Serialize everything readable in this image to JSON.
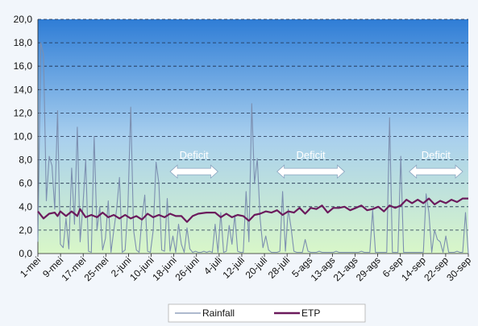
{
  "chart_data": {
    "type": "line",
    "ylim": [
      0,
      20
    ],
    "yticks": [
      "0,0",
      "2,0",
      "4,0",
      "6,0",
      "8,0",
      "10,0",
      "12,0",
      "14,0",
      "16,0",
      "18,0",
      "20,0"
    ],
    "xticks": [
      "1-mei",
      "9-mei",
      "17-mei",
      "25-mei",
      "2-juni",
      "10-juni",
      "18-juni",
      "26-juni",
      "4-juli",
      "12-juli",
      "20-juli",
      "28-juli",
      "5-ags",
      "13-ags",
      "21-ags",
      "29-ags",
      "6-sep",
      "14-sep",
      "22-sep",
      "30-sep"
    ],
    "grid": true,
    "legend_position": "bottom",
    "series": [
      {
        "name": "Rainfall",
        "color": "#7c8fb0",
        "points": [
          [
            0,
            1
          ],
          [
            1,
            18
          ],
          [
            2,
            17
          ],
          [
            3,
            4.5
          ],
          [
            4,
            8.3
          ],
          [
            5,
            7.5
          ],
          [
            6,
            3.8
          ],
          [
            7,
            12.2
          ],
          [
            8,
            0.8
          ],
          [
            9,
            0.5
          ],
          [
            10,
            3
          ],
          [
            11,
            0.4
          ],
          [
            12,
            7.3
          ],
          [
            13,
            2.5
          ],
          [
            14,
            10.8
          ],
          [
            15,
            1
          ],
          [
            16,
            4
          ],
          [
            17,
            8
          ],
          [
            18,
            0.2
          ],
          [
            19,
            0.1
          ],
          [
            20,
            10
          ],
          [
            21,
            2
          ],
          [
            22,
            4
          ],
          [
            23,
            0.3
          ],
          [
            24,
            1.3
          ],
          [
            25,
            4.5
          ],
          [
            26,
            0.1
          ],
          [
            27,
            2
          ],
          [
            28,
            3.8
          ],
          [
            29,
            6.5
          ],
          [
            30,
            0.1
          ],
          [
            31,
            0.3
          ],
          [
            32,
            4
          ],
          [
            33,
            12.5
          ],
          [
            34,
            2
          ],
          [
            35,
            0.3
          ],
          [
            36,
            0.1
          ],
          [
            37,
            3
          ],
          [
            38,
            5
          ],
          [
            39,
            0.2
          ],
          [
            40,
            0.1
          ],
          [
            41,
            2
          ],
          [
            42,
            7.8
          ],
          [
            43,
            6
          ],
          [
            44,
            0.3
          ],
          [
            45,
            0.2
          ],
          [
            46,
            4.7
          ],
          [
            47,
            0.2
          ],
          [
            48,
            1.5
          ],
          [
            49,
            0.1
          ],
          [
            50,
            2.5
          ],
          [
            51,
            0.8
          ],
          [
            52,
            0.1
          ],
          [
            53,
            2.2
          ],
          [
            54,
            0.4
          ],
          [
            55,
            0.1
          ],
          [
            56,
            0.2
          ],
          [
            57,
            0.1
          ],
          [
            58,
            0.1
          ],
          [
            59,
            0.2
          ],
          [
            60,
            0.1
          ],
          [
            61,
            0.2
          ],
          [
            62,
            0.1
          ],
          [
            63,
            2.5
          ],
          [
            64,
            0.1
          ],
          [
            65,
            3.5
          ],
          [
            66,
            0.1
          ],
          [
            67,
            0.2
          ],
          [
            68,
            2.4
          ],
          [
            69,
            0.8
          ],
          [
            70,
            3.3
          ],
          [
            71,
            0.2
          ],
          [
            72,
            0.1
          ],
          [
            73,
            0.1
          ],
          [
            74,
            5.3
          ],
          [
            75,
            1
          ],
          [
            76,
            12.8
          ],
          [
            77,
            6
          ],
          [
            78,
            8.1
          ],
          [
            79,
            3
          ],
          [
            80,
            0.5
          ],
          [
            81,
            1.5
          ],
          [
            82,
            0.3
          ],
          [
            83,
            0.1
          ],
          [
            84,
            0.1
          ],
          [
            85,
            0.1
          ],
          [
            86,
            0.2
          ],
          [
            87,
            5.3
          ],
          [
            88,
            0.2
          ],
          [
            89,
            3.8
          ],
          [
            90,
            2.2
          ],
          [
            91,
            0.2
          ],
          [
            92,
            0.1
          ],
          [
            93,
            0.1
          ],
          [
            94,
            0.1
          ],
          [
            95,
            1.2
          ],
          [
            96,
            0.2
          ],
          [
            97,
            0.1
          ],
          [
            98,
            0.1
          ],
          [
            99,
            0.1
          ],
          [
            100,
            0.2
          ],
          [
            101,
            0.1
          ],
          [
            102,
            0.1
          ],
          [
            103,
            0.1
          ],
          [
            104,
            0.1
          ],
          [
            105,
            0.1
          ],
          [
            106,
            0.2
          ],
          [
            107,
            0.1
          ],
          [
            108,
            0.1
          ],
          [
            109,
            0.1
          ],
          [
            110,
            0.1
          ],
          [
            111,
            0.1
          ],
          [
            112,
            0.1
          ],
          [
            113,
            0.1
          ],
          [
            114,
            0.1
          ],
          [
            115,
            0.2
          ],
          [
            116,
            0.1
          ],
          [
            117,
            0.1
          ],
          [
            118,
            0.1
          ],
          [
            119,
            3.7
          ],
          [
            120,
            0.1
          ],
          [
            121,
            0.1
          ],
          [
            122,
            0.1
          ],
          [
            123,
            0.1
          ],
          [
            124,
            0.1
          ],
          [
            125,
            11.6
          ],
          [
            126,
            0.1
          ],
          [
            127,
            0.1
          ],
          [
            128,
            0.1
          ],
          [
            129,
            8.3
          ],
          [
            130,
            0.1
          ],
          [
            131,
            0.1
          ],
          [
            132,
            0.1
          ],
          [
            133,
            0.1
          ],
          [
            134,
            0.1
          ],
          [
            135,
            0.1
          ],
          [
            136,
            0.1
          ],
          [
            137,
            0.1
          ],
          [
            138,
            5.1
          ],
          [
            139,
            3.5
          ],
          [
            140,
            0.1
          ],
          [
            141,
            2
          ],
          [
            142,
            1.2
          ],
          [
            143,
            1
          ],
          [
            144,
            0.1
          ],
          [
            145,
            1.5
          ],
          [
            146,
            0.1
          ],
          [
            147,
            0.1
          ],
          [
            148,
            0.1
          ],
          [
            149,
            0.2
          ],
          [
            150,
            0.1
          ],
          [
            151,
            0.1
          ],
          [
            152,
            3.5
          ],
          [
            153,
            0
          ]
        ]
      },
      {
        "name": "ETP",
        "color": "#6b1a5c",
        "points": [
          [
            0,
            3.6
          ],
          [
            2,
            3
          ],
          [
            4,
            3.4
          ],
          [
            6,
            3.5
          ],
          [
            7,
            3.2
          ],
          [
            8,
            3.6
          ],
          [
            10,
            3.2
          ],
          [
            12,
            3.6
          ],
          [
            14,
            3.2
          ],
          [
            15,
            3.8
          ],
          [
            17,
            3.1
          ],
          [
            19,
            3.3
          ],
          [
            21,
            3.1
          ],
          [
            23,
            3.5
          ],
          [
            25,
            3.1
          ],
          [
            27,
            3.3
          ],
          [
            29,
            3
          ],
          [
            31,
            3.3
          ],
          [
            33,
            3
          ],
          [
            35,
            3.2
          ],
          [
            37,
            2.9
          ],
          [
            39,
            3.4
          ],
          [
            41,
            3.1
          ],
          [
            43,
            3.3
          ],
          [
            45,
            3.1
          ],
          [
            47,
            3.4
          ],
          [
            49,
            3.2
          ],
          [
            51,
            3.2
          ],
          [
            53,
            2.7
          ],
          [
            55,
            3.2
          ],
          [
            57,
            3.4
          ],
          [
            60,
            3.5
          ],
          [
            63,
            3.5
          ],
          [
            65,
            3.1
          ],
          [
            67,
            3.4
          ],
          [
            69,
            3.1
          ],
          [
            71,
            3.3
          ],
          [
            73,
            3.2
          ],
          [
            75,
            2.8
          ],
          [
            77,
            3.3
          ],
          [
            79,
            3.4
          ],
          [
            81,
            3.6
          ],
          [
            83,
            3.5
          ],
          [
            85,
            3.7
          ],
          [
            87,
            3.3
          ],
          [
            89,
            3.6
          ],
          [
            91,
            3.5
          ],
          [
            93,
            3.9
          ],
          [
            95,
            3.4
          ],
          [
            97,
            3.9
          ],
          [
            99,
            3.8
          ],
          [
            101,
            4.1
          ],
          [
            103,
            3.5
          ],
          [
            105,
            3.9
          ],
          [
            107,
            3.9
          ],
          [
            109,
            4
          ],
          [
            111,
            3.7
          ],
          [
            113,
            3.9
          ],
          [
            115,
            4.1
          ],
          [
            117,
            3.7
          ],
          [
            119,
            3.8
          ],
          [
            121,
            4
          ],
          [
            123,
            3.6
          ],
          [
            125,
            4.1
          ],
          [
            127,
            3.9
          ],
          [
            129,
            4.1
          ],
          [
            131,
            4.6
          ],
          [
            133,
            4.3
          ],
          [
            135,
            4.6
          ],
          [
            137,
            4.3
          ],
          [
            139,
            4.7
          ],
          [
            141,
            4.2
          ],
          [
            143,
            4.5
          ],
          [
            145,
            4.3
          ],
          [
            147,
            4.6
          ],
          [
            149,
            4.4
          ],
          [
            151,
            4.7
          ],
          [
            153,
            4.7
          ]
        ]
      }
    ],
    "annotations": [
      {
        "text": "Deficit",
        "x_start": 47,
        "x_end": 64,
        "y": 7.0
      },
      {
        "text": "Deficit",
        "x_start": 85,
        "x_end": 109,
        "y": 7.0
      },
      {
        "text": "Deficit",
        "x_start": 132,
        "x_end": 151,
        "y": 7.0
      }
    ]
  }
}
